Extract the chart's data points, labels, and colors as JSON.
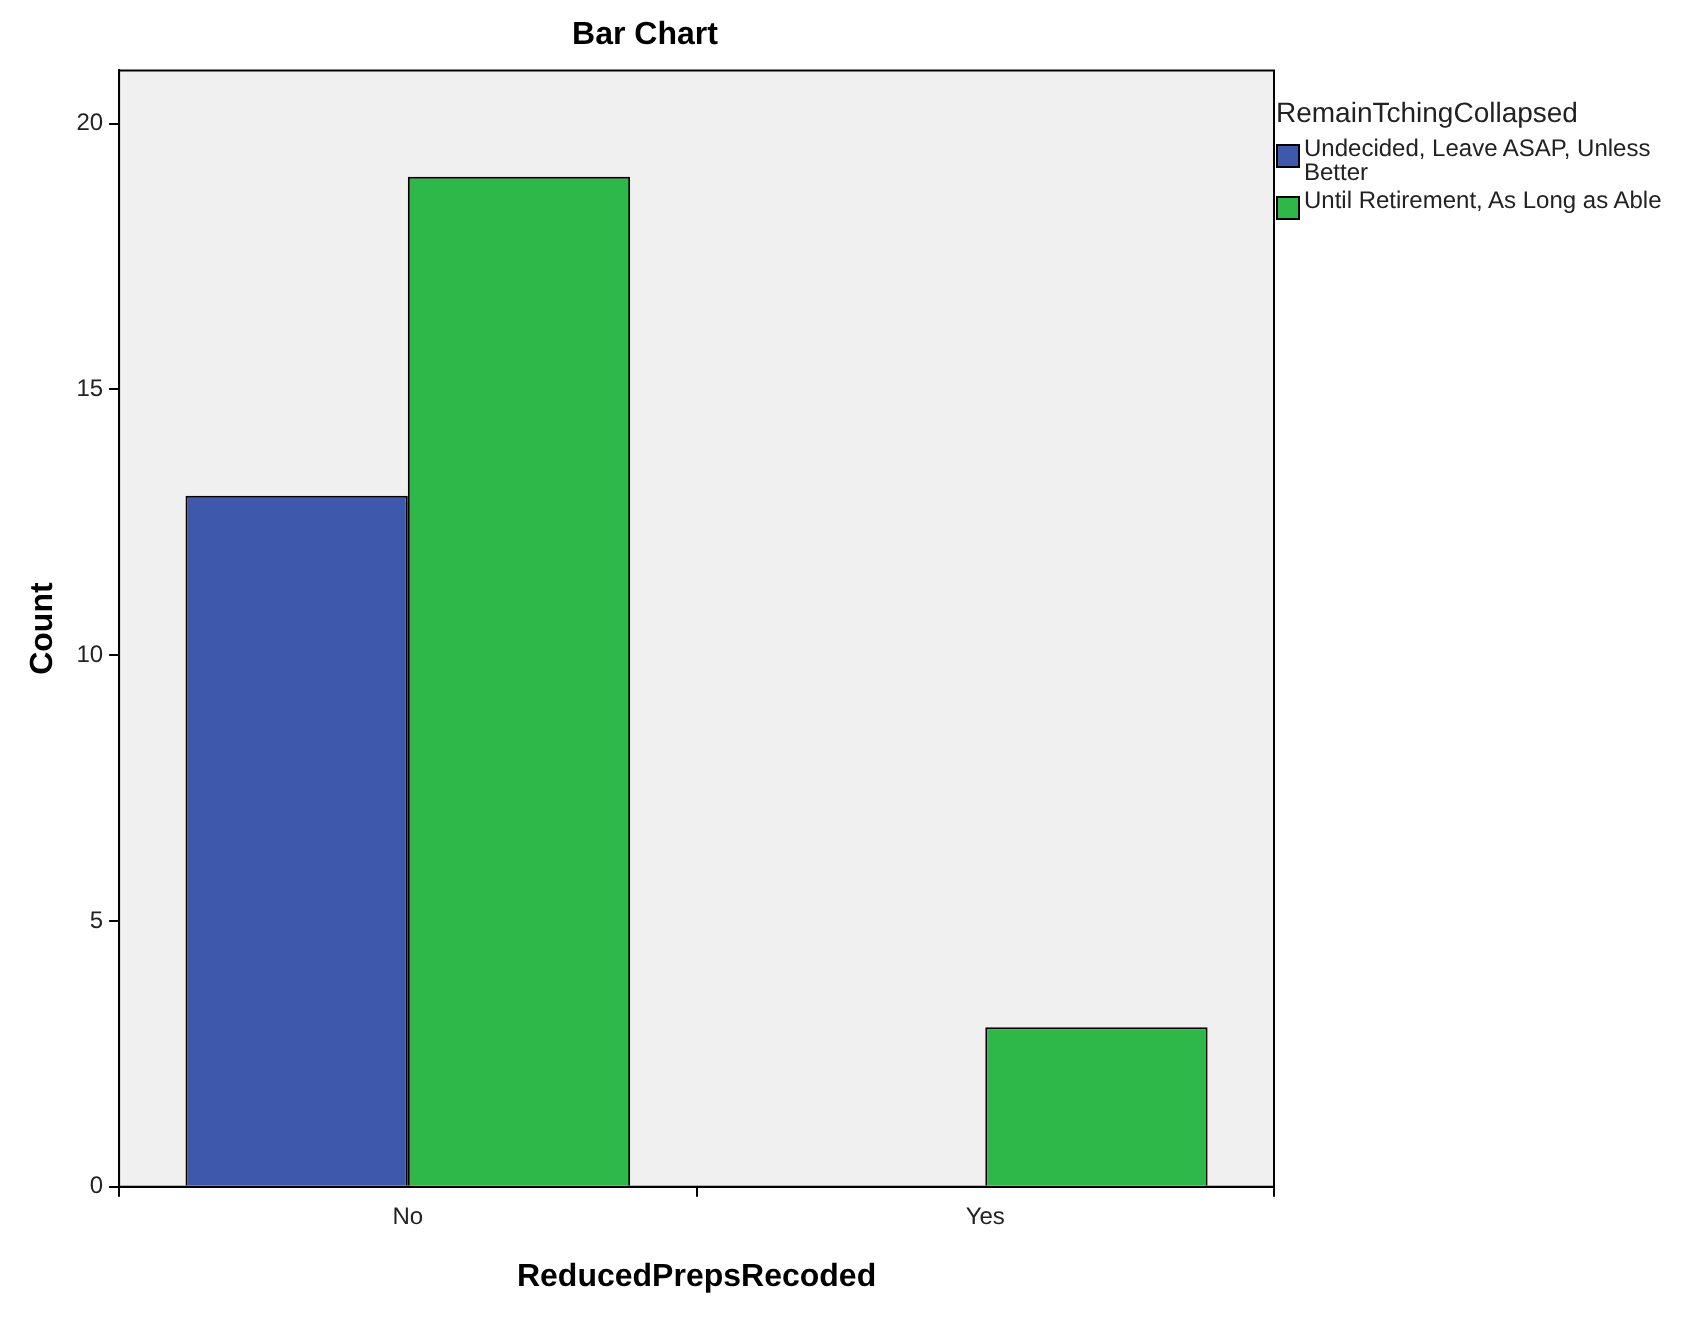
{
  "chart_data": {
    "type": "bar",
    "title": "Bar Chart",
    "xlabel": "ReducedPrepsRecoded",
    "ylabel": "Count",
    "legend_title": "RemainTchingCollapsed",
    "categories": [
      "No",
      "Yes"
    ],
    "series": [
      {
        "name": "Undecided, Leave ASAP, Unless Better",
        "color": "#3e58ac",
        "values": [
          13,
          0
        ]
      },
      {
        "name": "Until Retirement, As Long as Able",
        "color": "#2eb84a",
        "values": [
          19,
          3
        ]
      }
    ],
    "ylim": [
      0,
      21
    ],
    "yticks": [
      0,
      5,
      10,
      15,
      20
    ],
    "grid": false,
    "legend": "right"
  }
}
